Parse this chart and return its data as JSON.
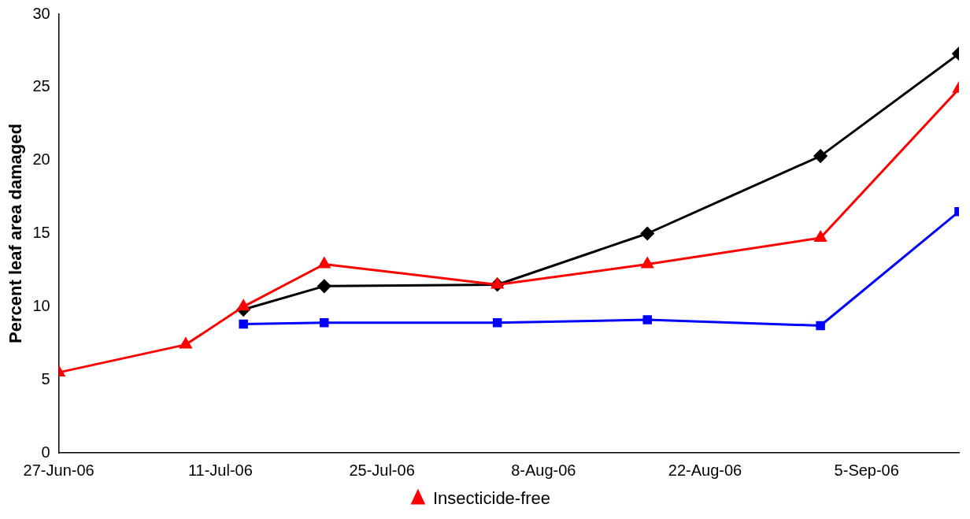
{
  "chart_data": {
    "type": "line",
    "ylabel": "Percent leaf area damaged",
    "xlim": [
      "2006-06-27",
      "2006-09-13"
    ],
    "xticks": [
      {
        "value": "2006-06-27",
        "label": "27-Jun-06"
      },
      {
        "value": "2006-07-11",
        "label": "11-Jul-06"
      },
      {
        "value": "2006-07-25",
        "label": "25-Jul-06"
      },
      {
        "value": "2006-08-08",
        "label": "8-Aug-06"
      },
      {
        "value": "2006-08-22",
        "label": "22-Aug-06"
      },
      {
        "value": "2006-09-05",
        "label": "5-Sep-06"
      }
    ],
    "ylim": [
      0,
      30
    ],
    "yticks": [
      0,
      5,
      10,
      15,
      20,
      25,
      30
    ],
    "grid": false,
    "legend": "bottom",
    "series": [
      {
        "color": "#000000",
        "marker": "diamond",
        "x": [
          "2006-07-13",
          "2006-07-20",
          "2006-08-04",
          "2006-08-17",
          "2006-09-01",
          "2006-09-13"
        ],
        "values": [
          9.8,
          11.4,
          11.5,
          15.0,
          20.3,
          27.3
        ]
      },
      {
        "color": "#0000ff",
        "marker": "square",
        "x": [
          "2006-07-13",
          "2006-07-20",
          "2006-08-04",
          "2006-08-17",
          "2006-09-01",
          "2006-09-13"
        ],
        "values": [
          8.8,
          8.9,
          8.9,
          9.1,
          8.7,
          16.5
        ]
      },
      {
        "name": "Insecticide-free",
        "color": "#ff0000",
        "marker": "triangle",
        "x": [
          "2006-06-27",
          "2006-07-08",
          "2006-07-13",
          "2006-07-20",
          "2006-08-04",
          "2006-08-17",
          "2006-09-01",
          "2006-09-13"
        ],
        "values": [
          5.5,
          7.4,
          10.0,
          12.9,
          11.5,
          12.9,
          14.7,
          24.9
        ]
      }
    ]
  }
}
